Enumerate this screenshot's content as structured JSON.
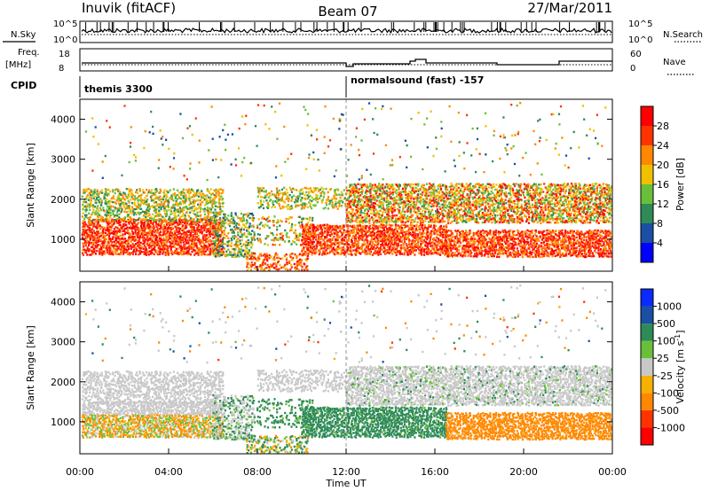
{
  "header": {
    "station": "Inuvik (fitACF)",
    "beam": "Beam 07",
    "date": "27/Mar/2011"
  },
  "strip1": {
    "left_label": "N.Sky",
    "right_label": "N.Search",
    "ticks": [
      "10^5",
      "10^0"
    ]
  },
  "strip2": {
    "left_label_1": "Freq.",
    "left_label_2": "[MHz]",
    "right_label": "Nave",
    "left_ticks": [
      "18",
      "8"
    ],
    "right_ticks": [
      "60",
      "0"
    ]
  },
  "cpid": {
    "label": "CPID",
    "modes": [
      "themis 3300",
      "normalsound (fast) -157"
    ]
  },
  "colors": {
    "power_scale": [
      "#0000ff",
      "#1a4fa3",
      "#2e8b57",
      "#6abf3a",
      "#f0c000",
      "#ff8800",
      "#ff3300",
      "#ff0000"
    ],
    "velocity_scale": [
      "#ff0000",
      "#ff3300",
      "#ff8800",
      "#f5b000",
      "#c8c8c8",
      "#6abf3a",
      "#2e8b57",
      "#1a4fa3",
      "#0a2aff"
    ],
    "ground_scatter": "#c8c8c8"
  },
  "chart_data": [
    {
      "type": "heatmap",
      "title": "",
      "xlabel": "",
      "ylabel": "Slant Range [km]",
      "xlim": [
        "00:00",
        "00:00"
      ],
      "ylim": [
        200,
        4500
      ],
      "x_ticks": [
        "00:00",
        "04:00",
        "08:00",
        "12:00",
        "16:00",
        "20:00",
        "00:00"
      ],
      "y_ticks": [
        1000,
        2000,
        3000,
        4000
      ],
      "colorbar_label": "Power [dB]",
      "colorbar_ticks": [
        4,
        8,
        12,
        16,
        20,
        24,
        28
      ],
      "colorbar_range": [
        0,
        32
      ],
      "features": [
        {
          "time_start_h": 0.0,
          "time_end_h": 6.5,
          "range_km": [
            700,
            1500
          ],
          "power_db": 26
        },
        {
          "time_start_h": 6.0,
          "time_end_h": 7.5,
          "range_km": [
            900,
            1700
          ],
          "power_db": 14
        },
        {
          "time_start_h": 10.0,
          "time_end_h": 24.0,
          "range_km": [
            700,
            1200
          ],
          "power_db": 26
        },
        {
          "time_start_h": 12.0,
          "time_end_h": 24.0,
          "range_km": [
            1500,
            2300
          ],
          "power_db": 22
        }
      ]
    },
    {
      "type": "heatmap",
      "title": "",
      "xlabel": "Time UT",
      "ylabel": "Slant Range [km]",
      "xlim": [
        "00:00",
        "00:00"
      ],
      "ylim": [
        200,
        4500
      ],
      "x_ticks": [
        "00:00",
        "04:00",
        "08:00",
        "12:00",
        "16:00",
        "20:00",
        "00:00"
      ],
      "y_ticks": [
        1000,
        2000,
        3000,
        4000
      ],
      "colorbar_label": "Velocity [m s-1]",
      "colorbar_ticks": [
        1000,
        500,
        100,
        25,
        -25,
        -100,
        -500,
        -1000
      ],
      "features": [
        {
          "time_start_h": 0.0,
          "time_end_h": 6.5,
          "range_km": [
            1400,
            2300
          ],
          "velocity_ms": 0
        },
        {
          "time_start_h": 0.0,
          "time_end_h": 7.0,
          "range_km": [
            600,
            1400
          ],
          "velocity_ms": -100
        },
        {
          "time_start_h": 10.0,
          "time_end_h": 16.5,
          "range_km": [
            700,
            1400
          ],
          "velocity_ms": 300
        },
        {
          "time_start_h": 16.5,
          "time_end_h": 24.0,
          "range_km": [
            600,
            1200
          ],
          "velocity_ms": -300
        },
        {
          "time_start_h": 12.0,
          "time_end_h": 24.0,
          "range_km": [
            1500,
            2400
          ],
          "velocity_ms": 0
        }
      ]
    }
  ]
}
